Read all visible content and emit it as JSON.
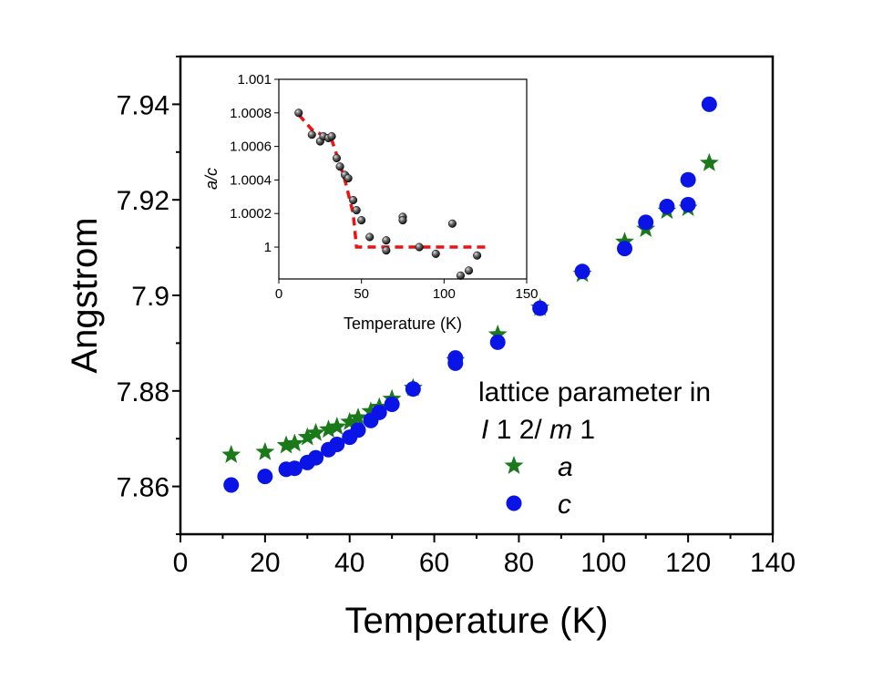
{
  "chart_data": [
    {
      "id": "main",
      "type": "scatter",
      "title": "",
      "xlabel": "Temperature (K)",
      "ylabel": "Angstrom",
      "xlim": [
        0,
        140
      ],
      "ylim": [
        7.85,
        7.95
      ],
      "xticks": [
        0,
        20,
        40,
        60,
        80,
        100,
        120,
        140
      ],
      "xtick_labels": [
        "0",
        "20",
        "40",
        "60",
        "80",
        "100",
        "120",
        "140"
      ],
      "yticks": [
        7.86,
        7.88,
        7.9,
        7.92,
        7.94
      ],
      "ytick_labels": [
        "7.86",
        "7.88",
        "7.9",
        "7.92",
        "7.94"
      ],
      "grid": false,
      "legend": {
        "title_line1": "lattice parameter in",
        "title_line2": "I 1 2/m 1",
        "position": "right"
      },
      "series": [
        {
          "name": "a",
          "marker": "star",
          "color": "#1a7a1a",
          "x": [
            12,
            20,
            25,
            27,
            30,
            32,
            35,
            37,
            40,
            42,
            45,
            47,
            50,
            55,
            65,
            75,
            85,
            95,
            105,
            110,
            115,
            120,
            125
          ],
          "y": [
            7.8666,
            7.8672,
            7.8686,
            7.869,
            7.8703,
            7.8712,
            7.8719,
            7.8725,
            7.8735,
            7.8744,
            7.8757,
            7.8766,
            7.8783,
            7.8806,
            7.8864,
            7.8918,
            7.8974,
            7.9045,
            7.9112,
            7.9139,
            7.9177,
            7.9183,
            7.9277
          ]
        },
        {
          "name": "c",
          "marker": "circle",
          "color": "#0a14e6",
          "x": [
            12,
            20,
            25,
            27,
            30,
            32,
            35,
            37,
            40,
            42,
            45,
            47,
            50,
            55,
            65,
            65,
            75,
            85,
            95,
            105,
            110,
            115,
            120,
            120,
            125
          ],
          "y": [
            7.8603,
            7.8621,
            7.8636,
            7.8638,
            7.865,
            7.866,
            7.8677,
            7.8688,
            7.8703,
            7.8718,
            7.8738,
            7.8755,
            7.8772,
            7.8804,
            7.8858,
            7.8869,
            7.8902,
            7.8973,
            7.905,
            7.9098,
            7.9153,
            7.9186,
            7.919,
            7.9242,
            7.94
          ]
        }
      ]
    },
    {
      "id": "inset",
      "type": "scatter",
      "title": "",
      "xlabel": "Temperature (K)",
      "ylabel": "a/c",
      "xlim": [
        0,
        150
      ],
      "ylim": [
        0.99981,
        1.001
      ],
      "xticks": [
        0,
        50,
        100,
        150
      ],
      "xtick_labels": [
        "0",
        "50",
        "100",
        "150"
      ],
      "yticks": [
        1.0,
        1.0002,
        1.0004,
        1.0006,
        1.0008,
        1.001
      ],
      "ytick_labels": [
        "1",
        "1.0002",
        "1.0004",
        "1.0006",
        "1.0008",
        "1.001"
      ],
      "grid": false,
      "series": [
        {
          "name": "a/c",
          "marker": "sphere",
          "color": "#111111",
          "x": [
            12,
            20,
            25,
            27,
            30,
            32,
            35,
            37,
            40,
            42,
            45,
            47,
            50,
            55,
            65,
            65,
            75,
            75,
            85,
            95,
            105,
            110,
            115,
            120
          ],
          "y": [
            1.0008,
            1.00067,
            1.00063,
            1.00066,
            1.00065,
            1.00066,
            1.00053,
            1.00048,
            1.00043,
            1.00041,
            1.00028,
            1.00022,
            1.00016,
            1.00006,
            1.00004,
            0.99998,
            1.00018,
            1.00016,
            1.0,
            0.99996,
            1.00014,
            0.99983,
            0.99986,
            0.99995
          ]
        },
        {
          "name": "guide",
          "style": "dashed",
          "color": "#ee1111",
          "x": [
            12,
            20,
            32,
            40,
            45,
            47,
            60,
            125
          ],
          "y": [
            1.00079,
            1.0007,
            1.00064,
            1.0004,
            1.0002,
            1.0,
            1.0,
            1.0
          ]
        }
      ]
    }
  ]
}
